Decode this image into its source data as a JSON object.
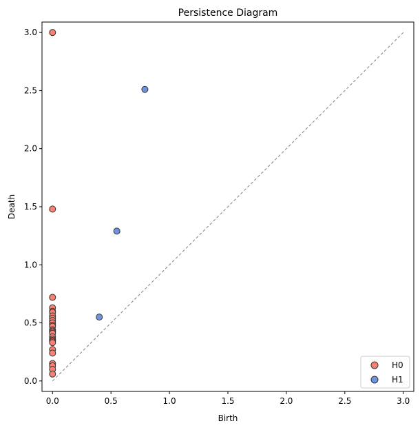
{
  "chart_data": {
    "type": "scatter",
    "title": "Persistence Diagram",
    "xlabel": "Birth",
    "ylabel": "Death",
    "xlim": [
      -0.09,
      3.09
    ],
    "ylim": [
      -0.09,
      3.09
    ],
    "xticks": [
      "0.0",
      "0.5",
      "1.0",
      "1.5",
      "2.0",
      "2.5",
      "3.0"
    ],
    "yticks": [
      "0.0",
      "0.5",
      "1.0",
      "1.5",
      "2.0",
      "2.5",
      "3.0"
    ],
    "grid": false,
    "legend_position": "bottom-right",
    "diagonal": [
      [
        0,
        0
      ],
      [
        3,
        3
      ]
    ],
    "series": [
      {
        "name": "H0",
        "color": "#fa8072",
        "edge_color": "#333333",
        "points": [
          [
            0,
            3.0
          ],
          [
            0,
            1.48
          ],
          [
            0,
            0.72
          ],
          [
            0,
            0.63
          ],
          [
            0,
            0.6
          ],
          [
            0,
            0.59
          ],
          [
            0,
            0.56
          ],
          [
            0,
            0.54
          ],
          [
            0,
            0.52
          ],
          [
            0,
            0.5
          ],
          [
            0,
            0.48
          ],
          [
            0,
            0.47
          ],
          [
            0,
            0.44
          ],
          [
            0,
            0.43
          ],
          [
            0,
            0.42
          ],
          [
            0,
            0.41
          ],
          [
            0,
            0.38
          ],
          [
            0,
            0.36
          ],
          [
            0,
            0.35
          ],
          [
            0,
            0.34
          ],
          [
            0,
            0.33
          ],
          [
            0,
            0.27
          ],
          [
            0,
            0.24
          ],
          [
            0,
            0.15
          ],
          [
            0,
            0.13
          ],
          [
            0,
            0.1
          ],
          [
            0,
            0.06
          ]
        ]
      },
      {
        "name": "H1",
        "color": "#6f93dc",
        "edge_color": "#333333",
        "points": [
          [
            0.79,
            2.51
          ],
          [
            0.55,
            1.29
          ],
          [
            0.4,
            0.55
          ]
        ]
      }
    ]
  }
}
